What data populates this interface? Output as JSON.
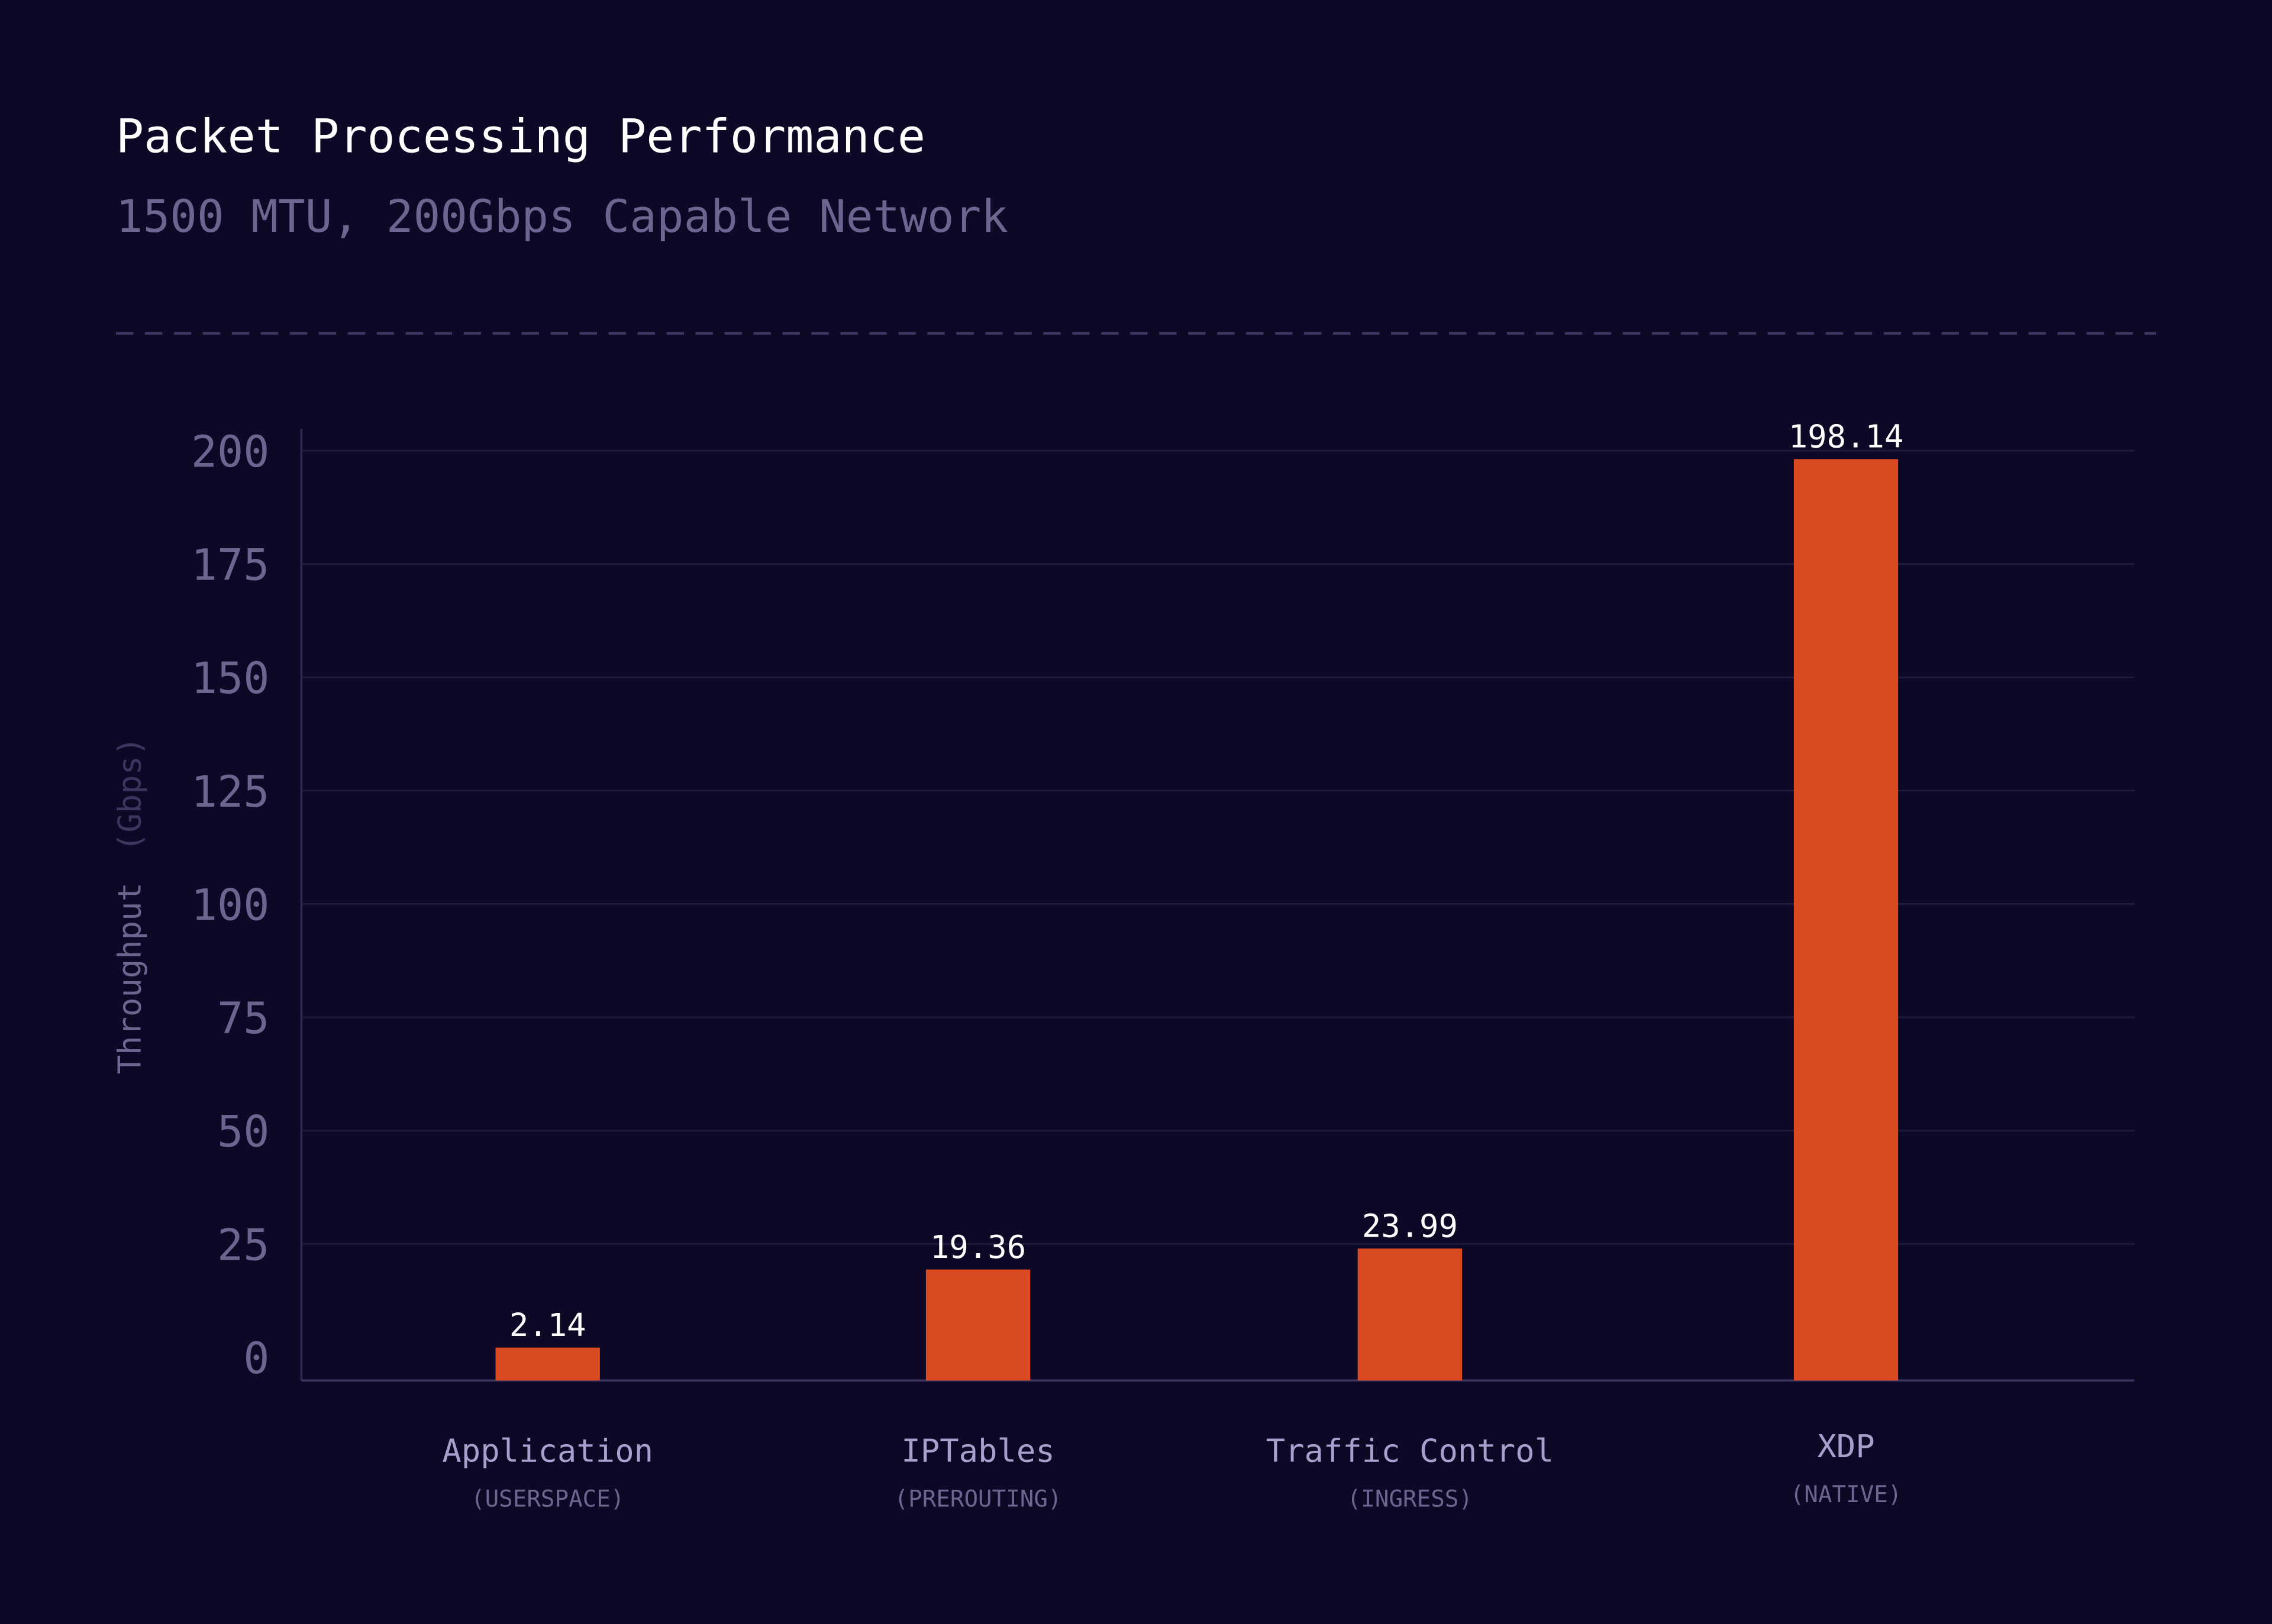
{
  "colors": {
    "background": "#0d0826",
    "bar": "#d94a22",
    "grid": "#1f1a3a",
    "muted_text": "#6e6490",
    "category_text": "#a79fcc",
    "value_text": "#ffffff"
  },
  "chart_data": {
    "type": "bar",
    "title": "Packet Processing Performance",
    "subtitle": "1500 MTU, 200Gbps Capable Network",
    "ylabel": "Throughput",
    "yunit": "(Gbps)",
    "ylim": [
      0,
      200
    ],
    "yticks": [
      "0",
      "25",
      "50",
      "75",
      "100",
      "125",
      "150",
      "175",
      "200"
    ],
    "grid": true,
    "categories": [
      {
        "label": "Application",
        "sublabel": "(USERSPACE)"
      },
      {
        "label": "IPTables",
        "sublabel": "(PREROUTING)"
      },
      {
        "label": "Traffic Control",
        "sublabel": "(INGRESS)"
      },
      {
        "label": "XDP",
        "sublabel": "(NATIVE)"
      }
    ],
    "values": [
      2.14,
      19.36,
      23.99,
      198.14
    ],
    "value_labels": [
      "2.14",
      "19.36",
      "23.99",
      "198.14"
    ]
  }
}
